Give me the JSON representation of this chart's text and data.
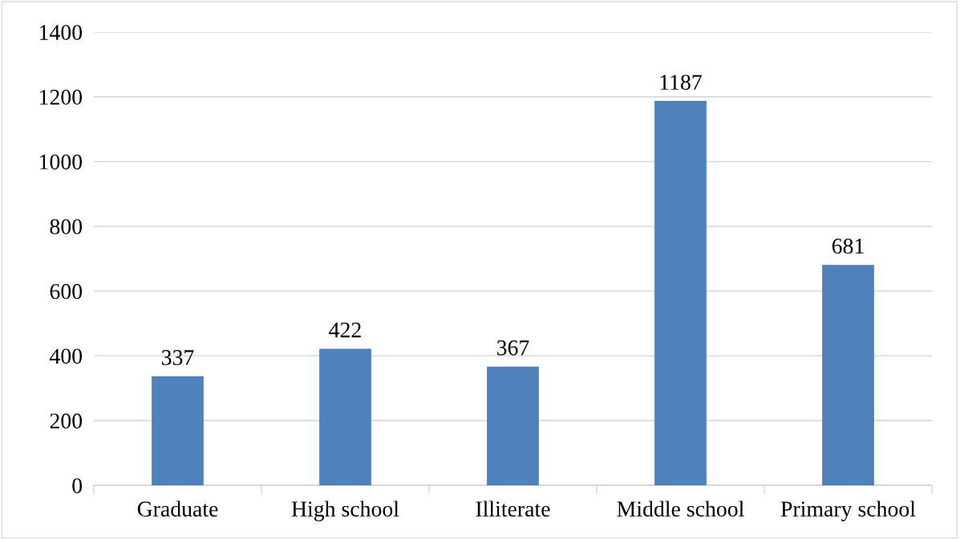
{
  "chart_data": {
    "type": "bar",
    "categories": [
      "Graduate",
      "High school",
      "Illiterate",
      "Middle school",
      "Primary school"
    ],
    "values": [
      337,
      422,
      367,
      1187,
      681
    ],
    "color": "#4f81bd",
    "ylim": [
      0,
      1400
    ],
    "yticks": [
      0,
      200,
      400,
      600,
      800,
      1000,
      1200,
      1400
    ],
    "grid": "y",
    "data_labels": true,
    "legend": false
  }
}
